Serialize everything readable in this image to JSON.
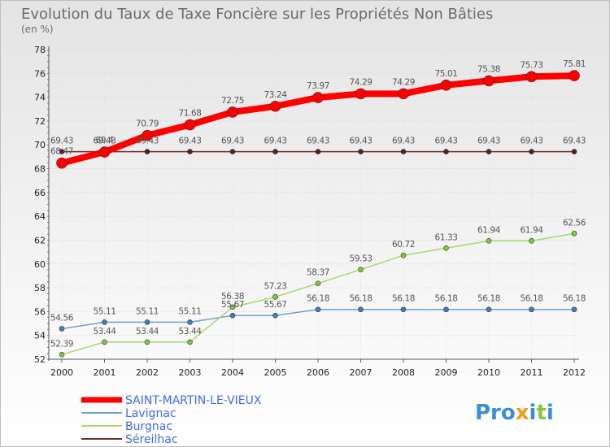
{
  "chart_data": {
    "type": "line",
    "title": "Evolution du Taux de Taxe Foncière sur les Propriétés Non Bâties",
    "ylabel": "(en %)",
    "xlabel": "",
    "ylim": [
      52,
      78
    ],
    "yticks": [
      52,
      54,
      56,
      58,
      60,
      62,
      64,
      66,
      68,
      70,
      72,
      74,
      76,
      78
    ],
    "categories": [
      "2000",
      "2001",
      "2002",
      "2003",
      "2004",
      "2005",
      "2006",
      "2007",
      "2008",
      "2009",
      "2010",
      "2011",
      "2012"
    ],
    "series": [
      {
        "name": "Séreilhac",
        "color": "#6e2b2b",
        "values": [
          69.43,
          69.43,
          69.43,
          69.43,
          69.43,
          69.43,
          69.43,
          69.43,
          69.43,
          69.43,
          69.43,
          69.43,
          69.43
        ],
        "labels": [
          "69.43",
          "69.43",
          "69.43",
          "69.43",
          "69.43",
          "69.43",
          "69.43",
          "69.43",
          "69.43",
          "69.43",
          "69.43",
          "69.43",
          "69.43"
        ]
      },
      {
        "name": "SAINT-MARTIN-LE-VIEUX",
        "color": "#ff0000",
        "values": [
          68.47,
          69.4,
          70.79,
          71.68,
          72.75,
          73.24,
          73.97,
          74.29,
          74.29,
          75.01,
          75.38,
          75.73,
          75.81
        ],
        "labels": [
          "68.47",
          "69.4",
          "70.79",
          "71.68",
          "72.75",
          "73.24",
          "73.97",
          "74.29",
          "74.29",
          "75.01",
          "75.38",
          "75.73",
          "75.81"
        ]
      },
      {
        "name": "Lavignac",
        "color": "#6fa0cc",
        "values": [
          54.56,
          55.11,
          55.11,
          55.11,
          55.67,
          55.67,
          56.18,
          56.18,
          56.18,
          56.18,
          56.18,
          56.18,
          56.18
        ],
        "labels": [
          "54.56",
          "55.11",
          "55.11",
          "55.11",
          "55.67",
          "55.67",
          "56.18",
          "56.18",
          "56.18",
          "56.18",
          "56.18",
          "56.18",
          "56.18"
        ]
      },
      {
        "name": "Burgnac",
        "color": "#a6d96a",
        "values": [
          52.39,
          53.44,
          53.44,
          53.44,
          56.38,
          57.23,
          58.37,
          59.53,
          60.72,
          61.33,
          61.94,
          61.94,
          62.56
        ],
        "labels": [
          "52.39",
          "53.44",
          "53.44",
          "53.44",
          "56.38",
          "57.23",
          "58.37",
          "59.53",
          "60.72",
          "61.33",
          "61.94",
          "61.94",
          "62.56"
        ]
      }
    ],
    "legend": [
      "SAINT-MARTIN-LE-VIEUX",
      "Lavignac",
      "Burgnac",
      "Séreilhac"
    ]
  },
  "logo": {
    "text": "Proxiti"
  }
}
